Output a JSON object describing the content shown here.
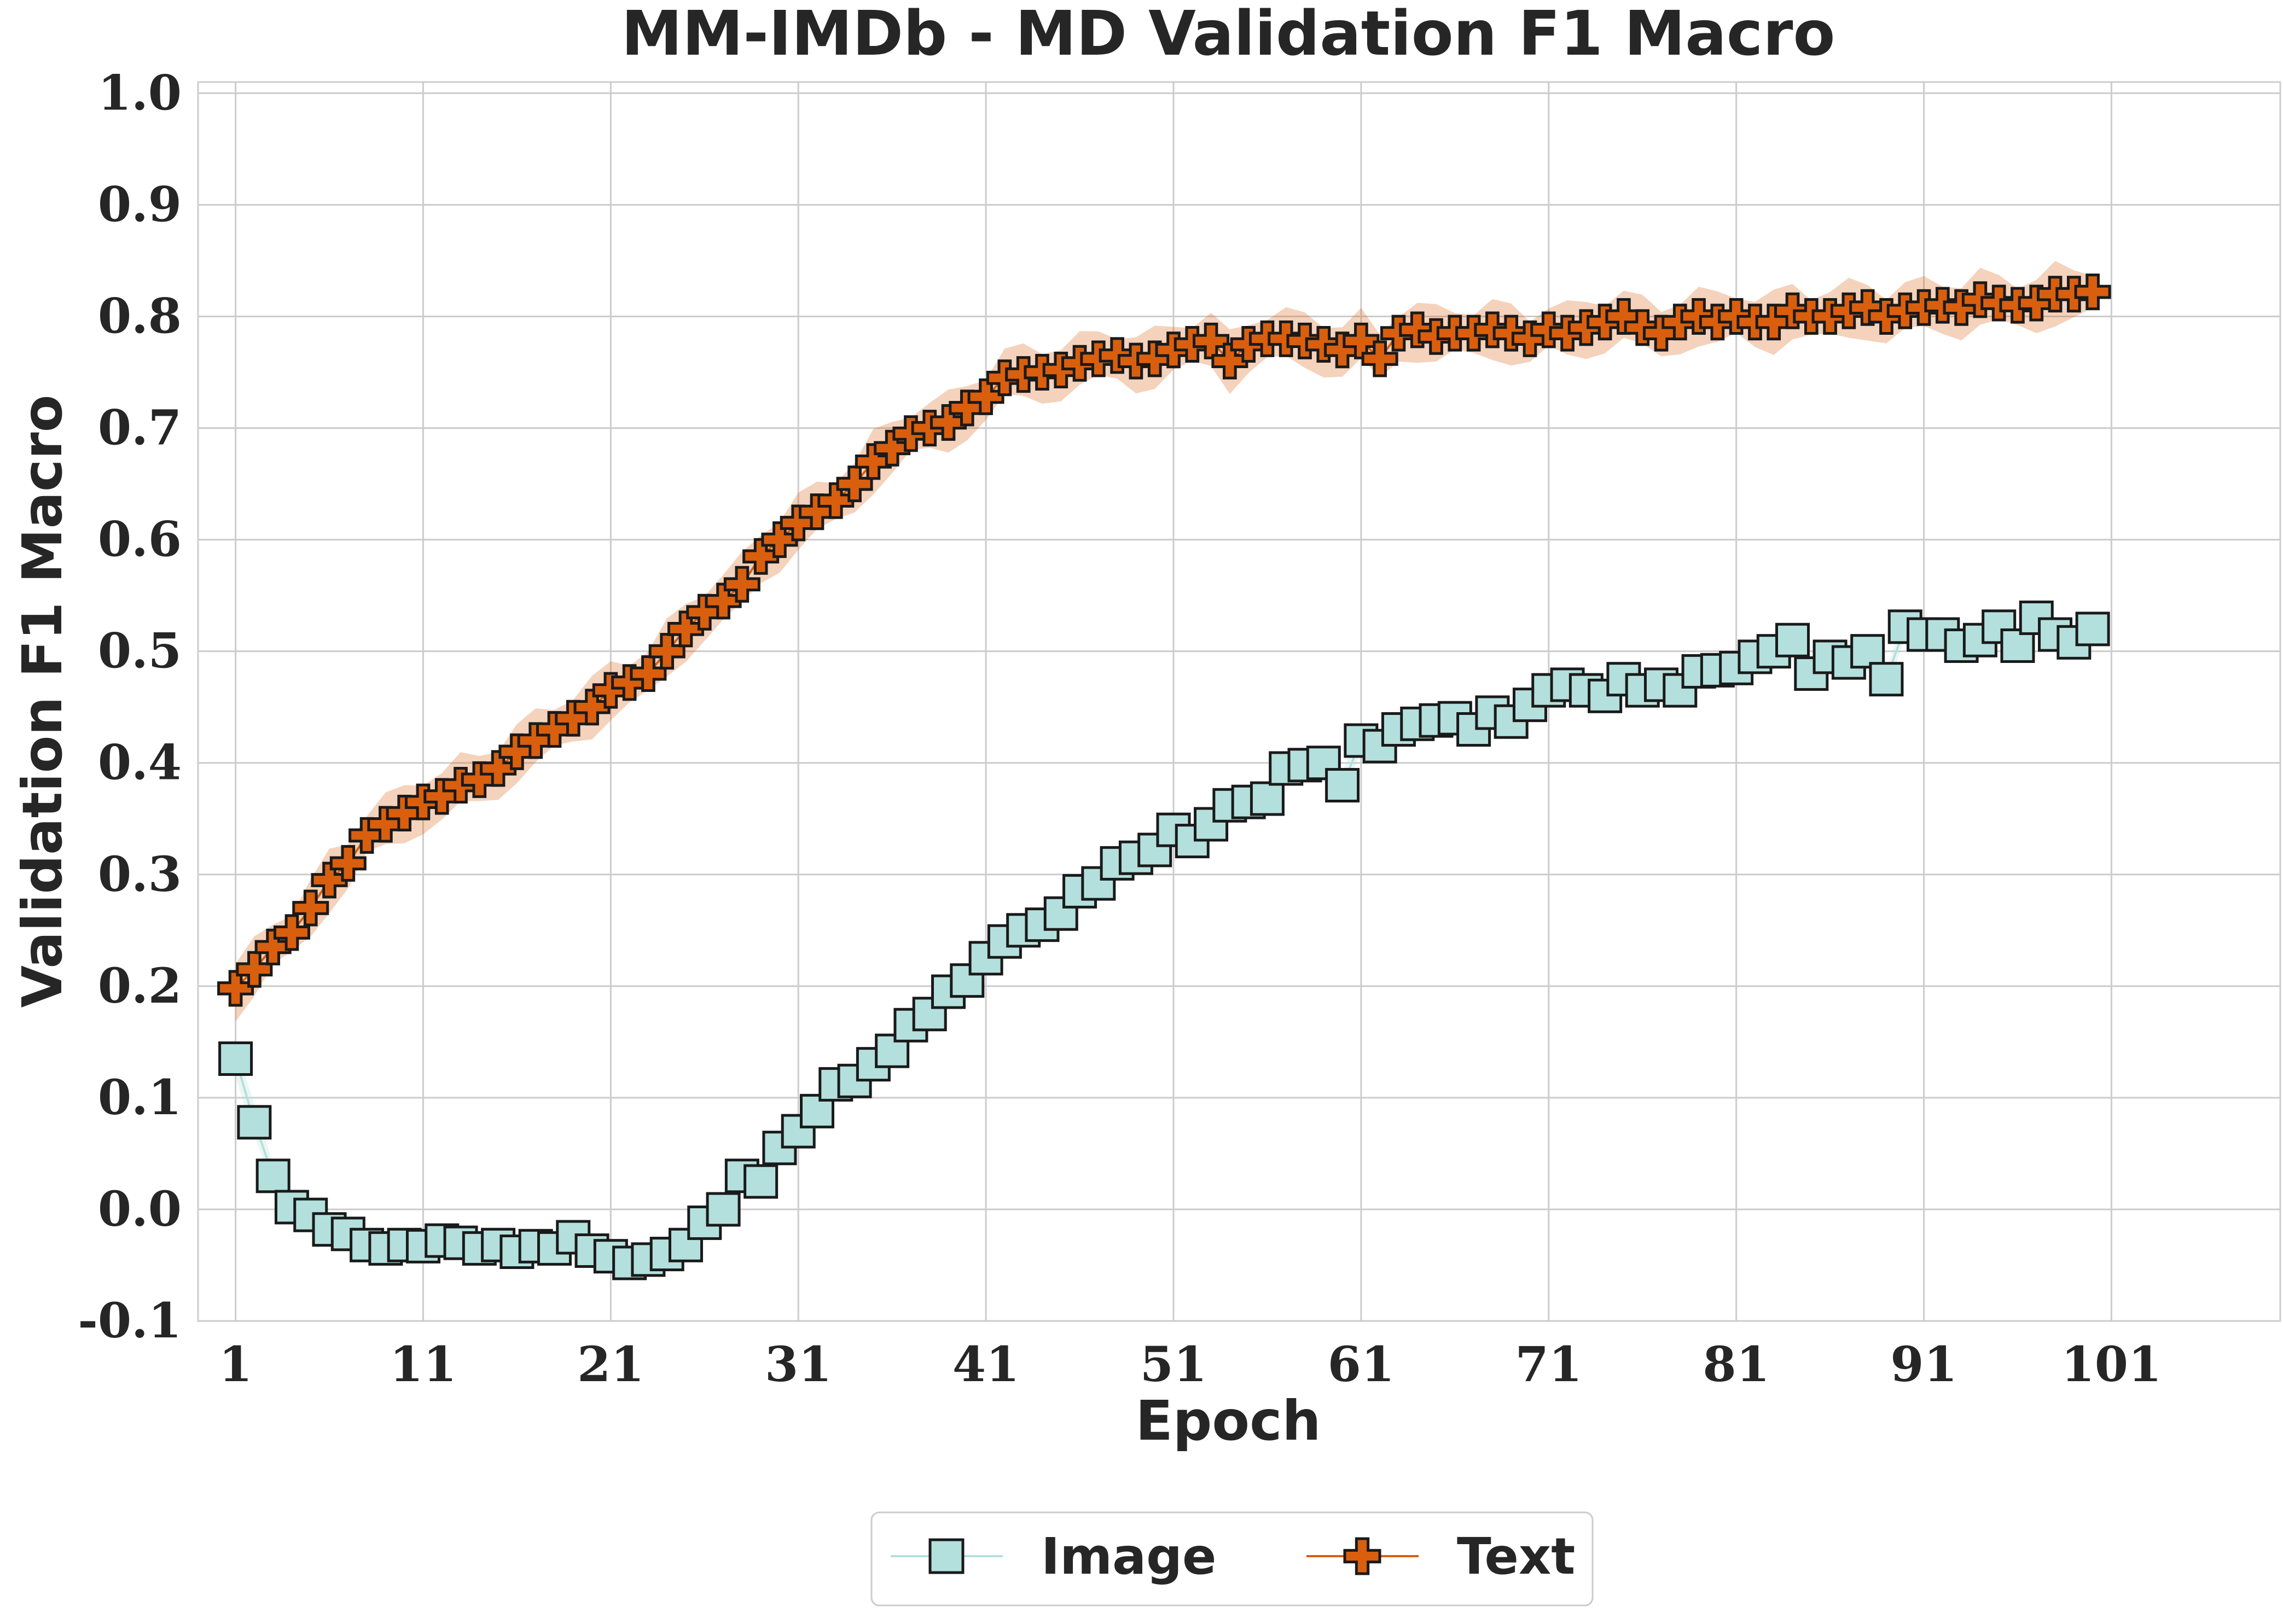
{
  "chart_data": {
    "type": "line",
    "title": "MM-IMDb - MD Validation F1 Macro",
    "xlabel": "Epoch",
    "ylabel": "Validation F1 Macro",
    "xlim": [
      -1,
      110
    ],
    "ylim": [
      -0.1,
      1.01
    ],
    "xticks": [
      "1",
      "11",
      "21",
      "31",
      "41",
      "51",
      "61",
      "71",
      "81",
      "91",
      "101"
    ],
    "yticks": [
      "-0.1",
      "0.0",
      "0.1",
      "0.2",
      "0.3",
      "0.4",
      "0.5",
      "0.6",
      "0.7",
      "0.8",
      "0.9",
      "1.0"
    ],
    "grid": true,
    "legend_position": "bottom-center",
    "x": [
      1,
      2,
      3,
      4,
      5,
      6,
      7,
      8,
      9,
      10,
      11,
      12,
      13,
      14,
      15,
      16,
      17,
      18,
      19,
      20,
      21,
      22,
      23,
      24,
      25,
      26,
      27,
      28,
      29,
      30,
      31,
      32,
      33,
      34,
      35,
      36,
      37,
      38,
      39,
      40,
      41,
      42,
      43,
      44,
      45,
      46,
      47,
      48,
      49,
      50,
      51,
      52,
      53,
      54,
      55,
      56,
      57,
      58,
      59,
      60,
      61,
      62,
      63,
      64,
      65,
      66,
      67,
      68,
      69,
      70,
      71,
      72,
      73,
      74,
      75,
      76,
      77,
      78,
      79,
      80,
      81,
      82,
      83,
      84,
      85,
      86,
      87,
      88,
      89,
      90,
      91,
      92,
      93,
      94,
      95,
      96,
      97,
      98,
      99,
      100
    ],
    "series": [
      {
        "name": "Image",
        "marker": "square",
        "color": "#b3e0dc",
        "edge_color": "#1a1a1a",
        "band_width": 0.012,
        "values": [
          0.135,
          0.078,
          0.03,
          0.002,
          -0.005,
          -0.018,
          -0.022,
          -0.032,
          -0.035,
          -0.032,
          -0.033,
          -0.028,
          -0.03,
          -0.035,
          -0.032,
          -0.038,
          -0.033,
          -0.035,
          -0.025,
          -0.037,
          -0.042,
          -0.048,
          -0.045,
          -0.04,
          -0.032,
          -0.012,
          0.0,
          0.03,
          0.025,
          0.055,
          0.07,
          0.088,
          0.112,
          0.115,
          0.13,
          0.142,
          0.165,
          0.175,
          0.195,
          0.205,
          0.225,
          0.24,
          0.25,
          0.255,
          0.265,
          0.285,
          0.292,
          0.31,
          0.315,
          0.322,
          0.34,
          0.33,
          0.345,
          0.362,
          0.365,
          0.368,
          0.395,
          0.398,
          0.4,
          0.38,
          0.42,
          0.415,
          0.43,
          0.435,
          0.438,
          0.44,
          0.43,
          0.445,
          0.437,
          0.452,
          0.465,
          0.47,
          0.465,
          0.46,
          0.475,
          0.465,
          0.47,
          0.465,
          0.482,
          0.483,
          0.485,
          0.495,
          0.5,
          0.51,
          0.48,
          0.495,
          0.49,
          0.5,
          0.475,
          0.522,
          0.515,
          0.515,
          0.505,
          0.51,
          0.522,
          0.505,
          0.53,
          0.515,
          0.508,
          0.52
        ]
      },
      {
        "name": "Text",
        "marker": "plus",
        "color": "#d95f0e",
        "edge_color": "#1a1a1a",
        "band_width": 0.022,
        "values": [
          0.198,
          0.215,
          0.235,
          0.248,
          0.27,
          0.295,
          0.31,
          0.335,
          0.345,
          0.355,
          0.365,
          0.37,
          0.38,
          0.385,
          0.395,
          0.41,
          0.42,
          0.43,
          0.44,
          0.45,
          0.465,
          0.472,
          0.48,
          0.5,
          0.52,
          0.535,
          0.545,
          0.56,
          0.585,
          0.6,
          0.615,
          0.625,
          0.635,
          0.65,
          0.67,
          0.682,
          0.695,
          0.7,
          0.705,
          0.718,
          0.728,
          0.745,
          0.748,
          0.75,
          0.752,
          0.758,
          0.762,
          0.765,
          0.76,
          0.762,
          0.77,
          0.775,
          0.778,
          0.76,
          0.775,
          0.78,
          0.78,
          0.778,
          0.775,
          0.77,
          0.778,
          0.762,
          0.785,
          0.788,
          0.782,
          0.785,
          0.785,
          0.788,
          0.785,
          0.78,
          0.788,
          0.785,
          0.79,
          0.795,
          0.8,
          0.79,
          0.785,
          0.795,
          0.8,
          0.795,
          0.8,
          0.795,
          0.795,
          0.805,
          0.8,
          0.8,
          0.805,
          0.808,
          0.8,
          0.805,
          0.808,
          0.81,
          0.808,
          0.815,
          0.812,
          0.81,
          0.812,
          0.82,
          0.82,
          0.822
        ]
      }
    ]
  }
}
